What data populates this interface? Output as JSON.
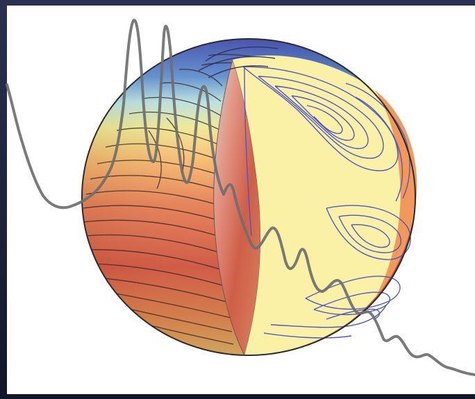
{
  "figure": {
    "subject": "sphere-flow-illustration",
    "palette": {
      "background": "#ffffff",
      "frame": "#1d2236",
      "hot": "#e2533a",
      "warm": "#f6b36a",
      "cool": "#4a5ec2",
      "interior": "#fbf1a6",
      "streamline_dark": "#3b2a2a",
      "streamline_blue": "#4f55c9",
      "spectrum": "#6f6f6f"
    },
    "icons": [
      "sphere-icon",
      "spectrum-curve-icon"
    ]
  }
}
